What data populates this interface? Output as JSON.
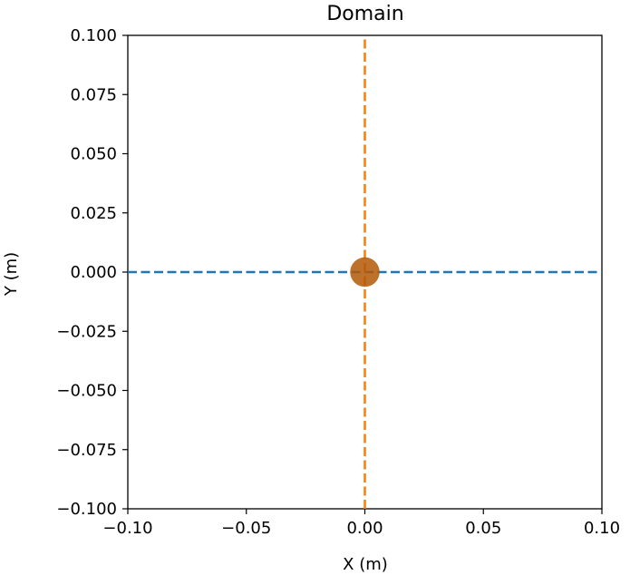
{
  "chart_data": {
    "type": "line",
    "title": "Domain",
    "xlabel": "X (m)",
    "ylabel": "Y (m)",
    "xlim": [
      -0.1,
      0.1
    ],
    "ylim": [
      -0.1,
      0.1
    ],
    "grid": false,
    "x_ticks": [
      -0.1,
      -0.05,
      0.0,
      0.05,
      0.1
    ],
    "x_tick_labels": [
      "−0.10",
      "−0.05",
      "0.00",
      "0.05",
      "0.10"
    ],
    "y_ticks": [
      0.1,
      0.075,
      0.05,
      0.025,
      0.0,
      -0.025,
      -0.05,
      -0.075,
      -0.1
    ],
    "y_tick_labels": [
      "0.100",
      "0.075",
      "0.050",
      "0.025",
      "0.000",
      "−0.025",
      "−0.050",
      "−0.075",
      "−0.100"
    ],
    "series": [
      {
        "style": "dashed",
        "color": "#1f77b4",
        "x": [
          -0.1,
          0.1
        ],
        "y": [
          0.0,
          0.0
        ]
      },
      {
        "style": "dashed",
        "color": "#ff7f0e",
        "x": [
          0.0,
          0.0
        ],
        "y": [
          -0.1,
          0.1
        ]
      }
    ],
    "markers": [
      {
        "x": 0.0,
        "y": 0.0,
        "radius": 0.0062,
        "color": "#b35806",
        "opacity": 0.85
      }
    ]
  }
}
